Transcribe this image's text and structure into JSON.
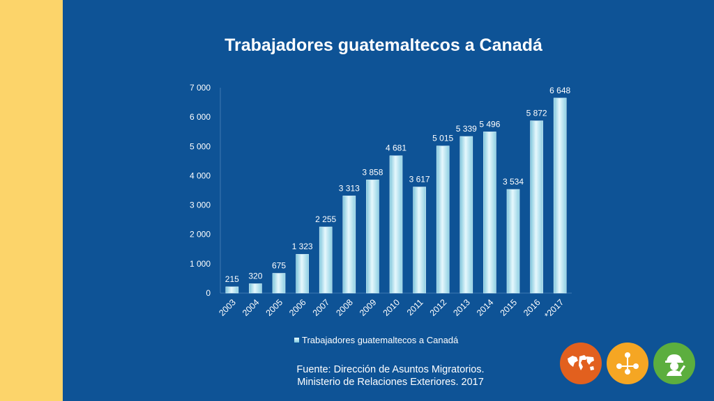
{
  "chart_data": {
    "type": "bar",
    "title": "Trabajadores guatemaltecos a Canadá",
    "categories": [
      "2003",
      "2004",
      "2005",
      "2006",
      "2007",
      "2008",
      "2009",
      "2010",
      "2011",
      "2012",
      "2013",
      "2014",
      "2015",
      "2016",
      "*2017"
    ],
    "series": [
      {
        "name": "Trabajadores guatemaltecos a Canadá",
        "values": [
          215,
          320,
          675,
          1323,
          2255,
          3313,
          3858,
          4681,
          3617,
          5015,
          5339,
          5496,
          3534,
          5872,
          6648
        ],
        "value_labels": [
          "215",
          "320",
          "675",
          "1 323",
          "2 255",
          "3 313",
          "3 858",
          "4 681",
          "3 617",
          "5 015",
          "5 339",
          "5 496",
          "3 534",
          "5 872",
          "6 648"
        ]
      }
    ],
    "yticks": [
      0,
      1000,
      2000,
      3000,
      4000,
      5000,
      6000,
      7000
    ],
    "ytick_labels": [
      "0",
      "1 000",
      "2 000",
      "3 000",
      "4 000",
      "5 000",
      "6 000",
      "7 000"
    ],
    "ylim": [
      0,
      7000
    ],
    "xlabel": "",
    "ylabel": "",
    "grid": false,
    "legend_position": "bottom",
    "bar_color": "#bfeaf5"
  },
  "source": {
    "line1": "Fuente: Dirección de Asuntos Migratorios.",
    "line2": "Ministerio de Relaciones Exteriores. 2017"
  },
  "icons": [
    {
      "name": "world-map-icon",
      "color": "#e2601e"
    },
    {
      "name": "network-people-icon",
      "color": "#f5a623"
    },
    {
      "name": "worker-helmet-icon",
      "color": "#5cae3e"
    }
  ],
  "colors": {
    "background": "#0e5396",
    "side_strip": "#fcd46a"
  }
}
